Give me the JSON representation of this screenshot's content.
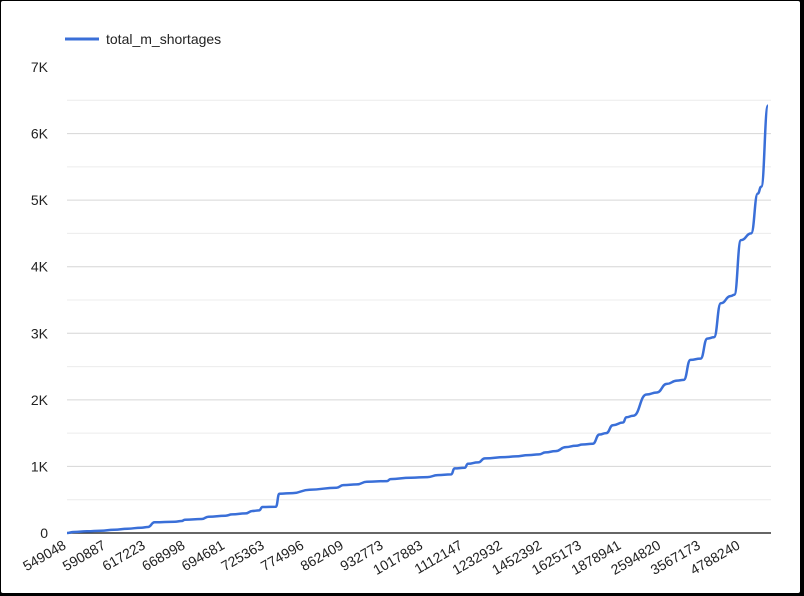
{
  "chart_data": {
    "type": "line",
    "title": "",
    "xlabel": "",
    "ylabel": "",
    "legend_position": "top-left",
    "grid": true,
    "line_color": "#3a6fd8",
    "ylim": [
      0,
      7000
    ],
    "y_ticks": [
      0,
      1000,
      2000,
      3000,
      4000,
      5000,
      6000,
      7000
    ],
    "y_tick_labels": [
      "0",
      "1K",
      "2K",
      "3K",
      "4K",
      "5K",
      "6K",
      "7K"
    ],
    "x_tick_labels": [
      "549048",
      "590887",
      "617223",
      "668998",
      "694681",
      "725363",
      "774996",
      "862409",
      "932773",
      "1017883",
      "1112147",
      "1232932",
      "1452392",
      "1625173",
      "1878941",
      "2594820",
      "3567173",
      "4788240"
    ],
    "series": [
      {
        "name": "total_m_shortages",
        "curve": [
          [
            0,
            0
          ],
          [
            0.01,
            15
          ],
          [
            0.03,
            25
          ],
          [
            0.05,
            35
          ],
          [
            0.07,
            50
          ],
          [
            0.09,
            65
          ],
          [
            0.11,
            80
          ],
          [
            0.12,
            90
          ],
          [
            0.13,
            160
          ],
          [
            0.16,
            170
          ],
          [
            0.17,
            180
          ],
          [
            0.175,
            200
          ],
          [
            0.2,
            210
          ],
          [
            0.21,
            245
          ],
          [
            0.235,
            260
          ],
          [
            0.245,
            280
          ],
          [
            0.265,
            295
          ],
          [
            0.275,
            330
          ],
          [
            0.285,
            340
          ],
          [
            0.29,
            390
          ],
          [
            0.31,
            395
          ],
          [
            0.315,
            590
          ],
          [
            0.335,
            600
          ],
          [
            0.36,
            650
          ],
          [
            0.4,
            680
          ],
          [
            0.41,
            720
          ],
          [
            0.43,
            730
          ],
          [
            0.445,
            770
          ],
          [
            0.475,
            780
          ],
          [
            0.48,
            810
          ],
          [
            0.51,
            830
          ],
          [
            0.535,
            840
          ],
          [
            0.55,
            870
          ],
          [
            0.57,
            880
          ],
          [
            0.575,
            970
          ],
          [
            0.59,
            980
          ],
          [
            0.595,
            1040
          ],
          [
            0.61,
            1060
          ],
          [
            0.62,
            1120
          ],
          [
            0.65,
            1140
          ],
          [
            0.665,
            1150
          ],
          [
            0.685,
            1170
          ],
          [
            0.7,
            1180
          ],
          [
            0.71,
            1210
          ],
          [
            0.725,
            1230
          ],
          [
            0.74,
            1290
          ],
          [
            0.755,
            1310
          ],
          [
            0.765,
            1330
          ],
          [
            0.78,
            1340
          ],
          [
            0.79,
            1480
          ],
          [
            0.8,
            1500
          ],
          [
            0.81,
            1620
          ],
          [
            0.825,
            1660
          ],
          [
            0.83,
            1740
          ],
          [
            0.84,
            1760
          ],
          [
            0.86,
            2080
          ],
          [
            0.875,
            2110
          ],
          [
            0.89,
            2240
          ],
          [
            0.905,
            2290
          ],
          [
            0.915,
            2300
          ],
          [
            0.925,
            2600
          ],
          [
            0.94,
            2620
          ],
          [
            0.95,
            2920
          ],
          [
            0.96,
            2940
          ],
          [
            0.97,
            3450
          ],
          [
            0.985,
            3560
          ],
          [
            0.99,
            3580
          ],
          [
            1.0,
            4400
          ],
          [
            1.015,
            4500
          ],
          [
            1.025,
            5100
          ],
          [
            1.03,
            5200
          ],
          [
            1.04,
            6420
          ]
        ]
      }
    ]
  }
}
